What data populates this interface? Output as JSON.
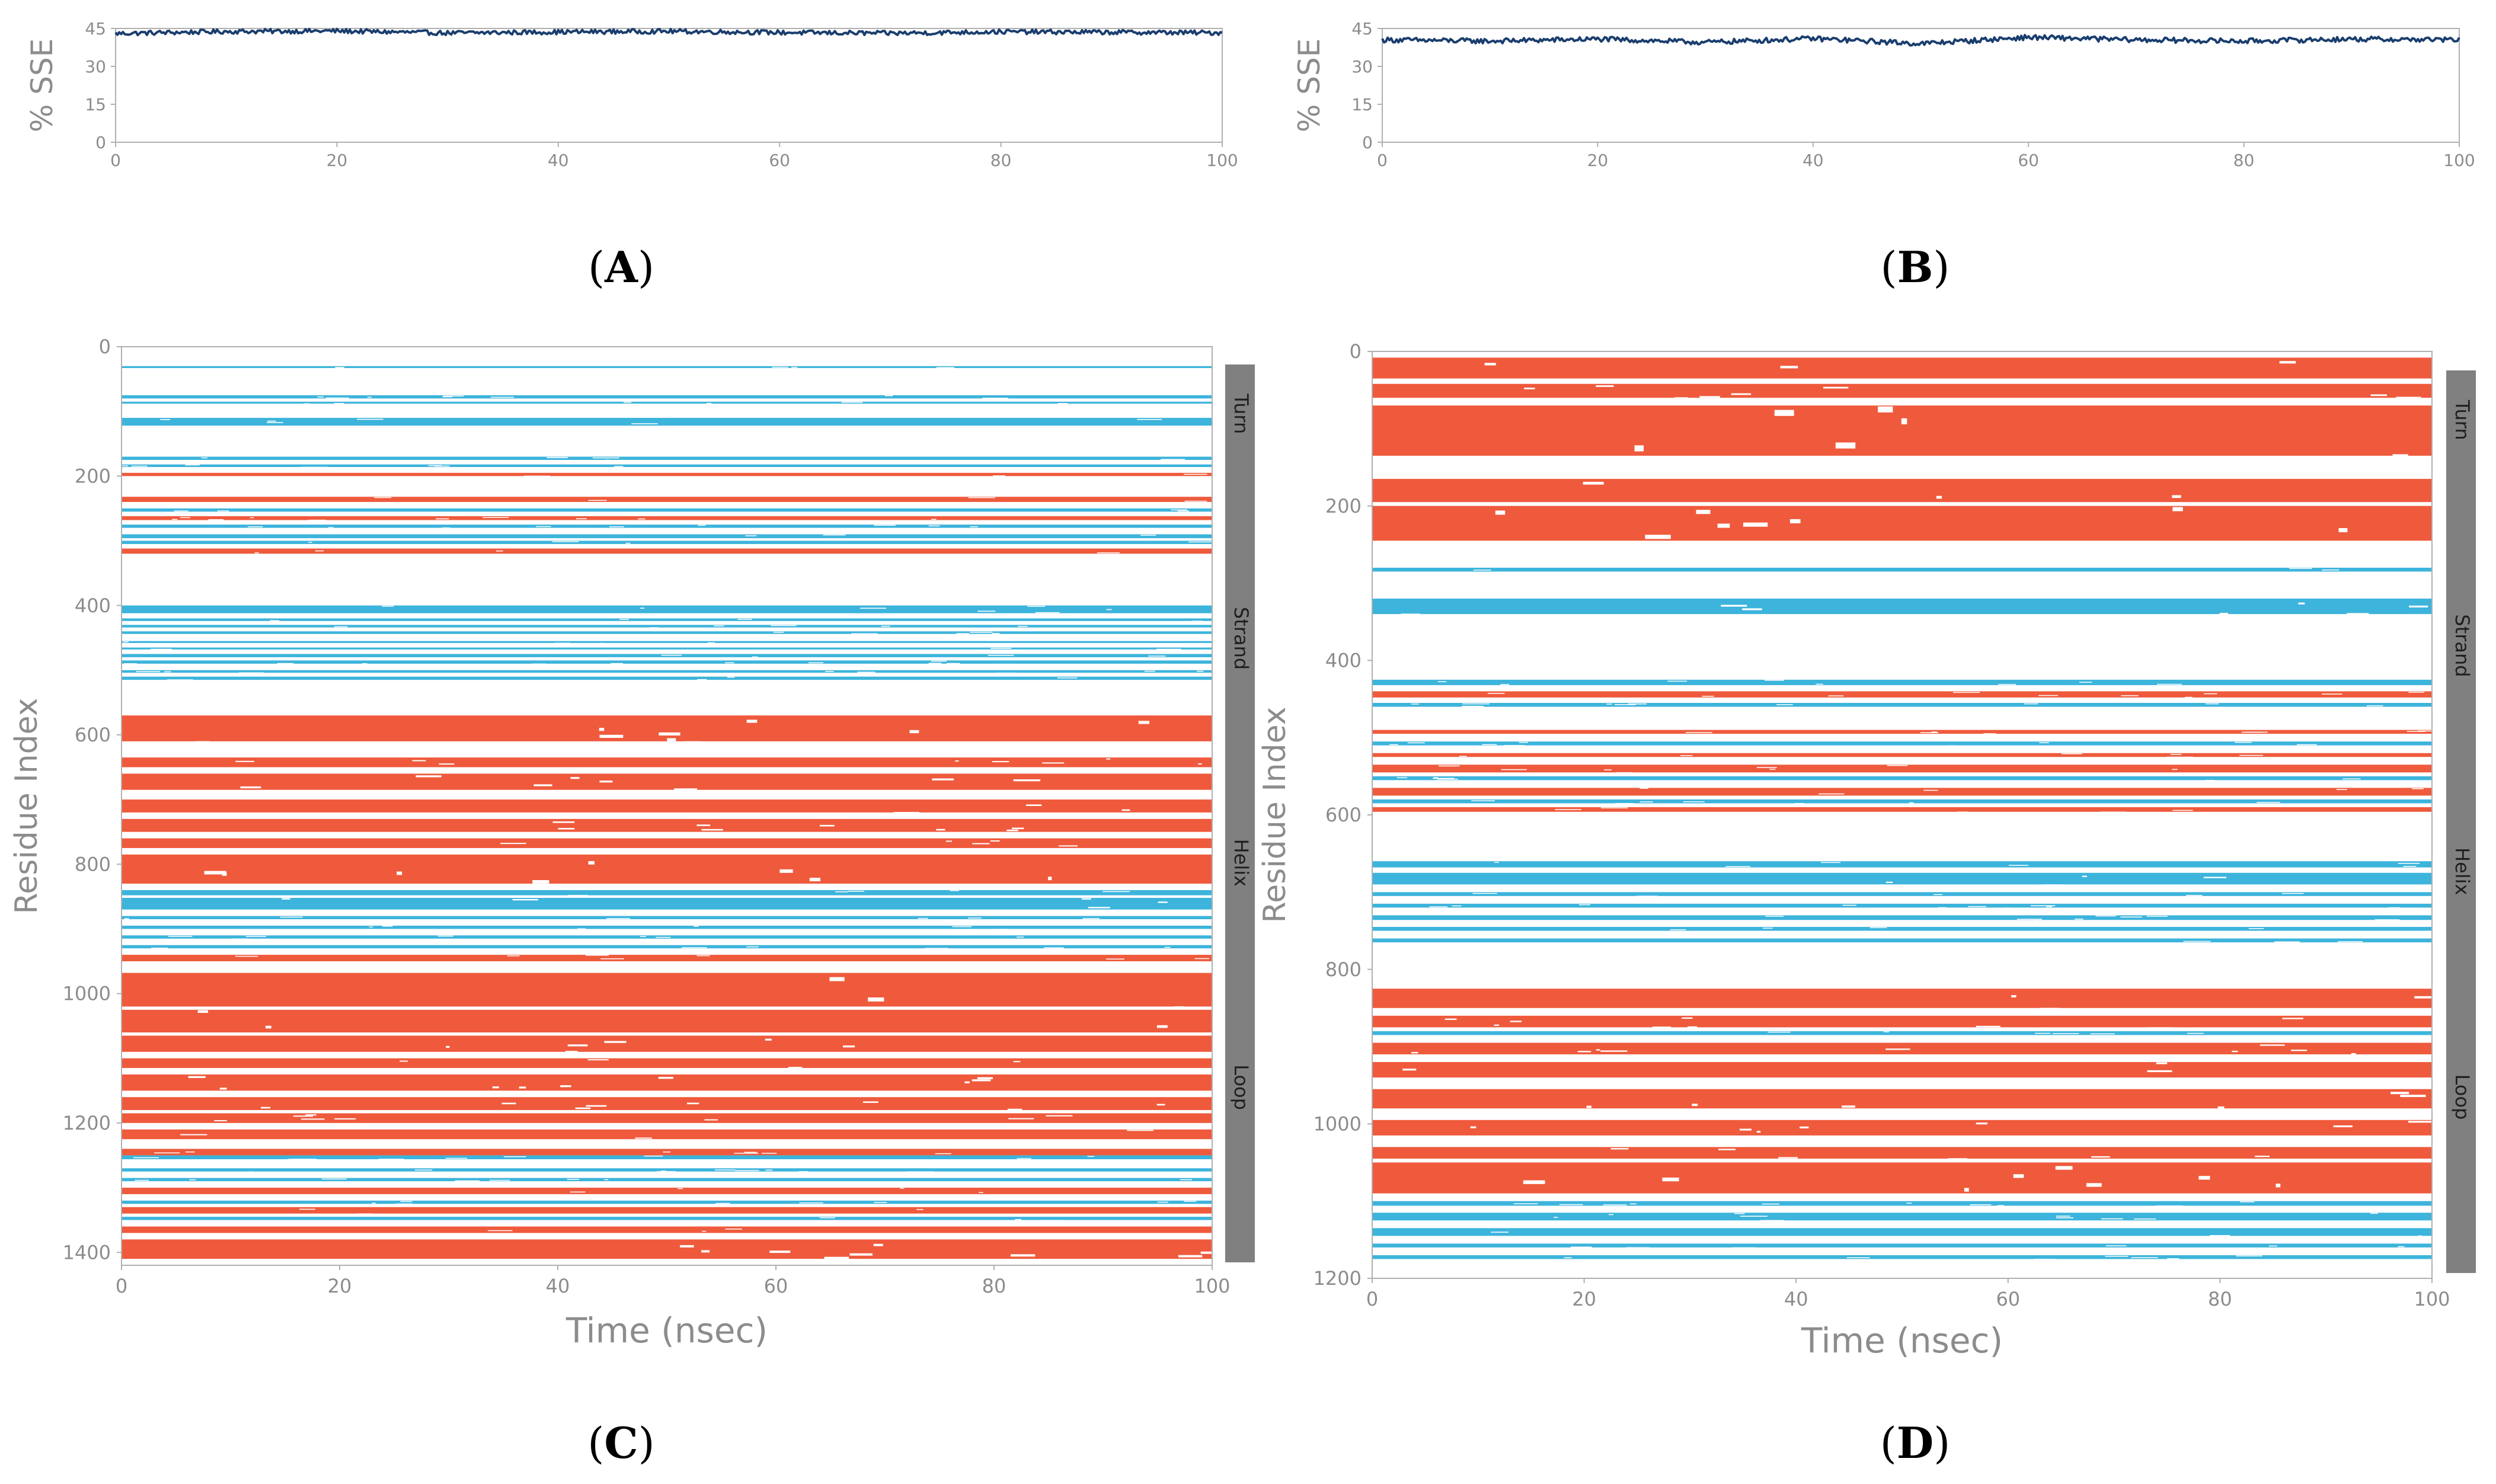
{
  "figure": {
    "panel_labels": [
      "A",
      "B",
      "C",
      "D"
    ]
  },
  "colors": {
    "sse_line": "#1a3e6e",
    "helix": "#ef5a3c",
    "strand": "#3cb4dc",
    "axis": "#b0b0b0",
    "tick_text": "#8c8c8c",
    "legend_bar": "#808080",
    "legend_text": "#1e1e1e"
  },
  "chart_data": [
    {
      "panel": "A",
      "type": "line",
      "title": "",
      "xlabel": "",
      "ylabel": "% SSE",
      "xlim": [
        0,
        100
      ],
      "ylim": [
        0,
        45
      ],
      "xticks": [
        "0",
        "20",
        "40",
        "60",
        "80",
        "100"
      ],
      "yticks": [
        "0",
        "15",
        "30",
        "45"
      ],
      "mean": 43.5,
      "jitter": 0.9,
      "series": [
        {
          "name": "% SSE",
          "values": [
            43.0,
            43.8,
            44.0,
            43.2,
            43.6,
            43.9,
            43.4,
            43.1,
            43.7,
            43.5,
            43.3
          ]
        }
      ]
    },
    {
      "panel": "B",
      "type": "line",
      "title": "",
      "xlabel": "",
      "ylabel": "% SSE",
      "xlim": [
        0,
        100
      ],
      "ylim": [
        0,
        45
      ],
      "xticks": [
        "0",
        "20",
        "40",
        "60",
        "80",
        "100"
      ],
      "yticks": [
        "0",
        "15",
        "30",
        "45"
      ],
      "mean": 40.5,
      "jitter": 1.0,
      "series": [
        {
          "name": "% SSE",
          "values": [
            40.5,
            40.0,
            40.8,
            39.5,
            41.0,
            39.0,
            41.5,
            40.5,
            40.0,
            40.8,
            40.5
          ]
        }
      ]
    },
    {
      "panel": "C",
      "type": "heatmap",
      "xlabel": "Time (nsec)",
      "ylabel": "Residue Index",
      "xlim": [
        0,
        100
      ],
      "ylim": [
        0,
        1420
      ],
      "xticks": [
        "0",
        "20",
        "40",
        "60",
        "80",
        "100"
      ],
      "yticks": [
        "0",
        "200",
        "400",
        "600",
        "800",
        "1000",
        "1200",
        "1400"
      ],
      "legend": [
        "Turn",
        "Strand",
        "Helix",
        "Loop"
      ],
      "helix_bands": [
        [
          195,
          200
        ],
        [
          232,
          240
        ],
        [
          262,
          268
        ],
        [
          312,
          320
        ],
        [
          570,
          610
        ],
        [
          635,
          650
        ],
        [
          660,
          685
        ],
        [
          700,
          720
        ],
        [
          730,
          750
        ],
        [
          760,
          775
        ],
        [
          785,
          830
        ],
        [
          940,
          950
        ],
        [
          968,
          1020
        ],
        [
          1025,
          1060
        ],
        [
          1065,
          1090
        ],
        [
          1100,
          1115
        ],
        [
          1125,
          1150
        ],
        [
          1160,
          1180
        ],
        [
          1185,
          1200
        ],
        [
          1210,
          1225
        ],
        [
          1240,
          1250
        ],
        [
          1300,
          1310
        ],
        [
          1330,
          1340
        ],
        [
          1360,
          1370
        ],
        [
          1380,
          1410
        ]
      ],
      "strand_bands": [
        [
          30,
          33
        ],
        [
          75,
          80
        ],
        [
          85,
          88
        ],
        [
          110,
          122
        ],
        [
          170,
          175
        ],
        [
          182,
          186
        ],
        [
          250,
          255
        ],
        [
          275,
          280
        ],
        [
          290,
          296
        ],
        [
          300,
          305
        ],
        [
          400,
          412
        ],
        [
          420,
          424
        ],
        [
          430,
          434
        ],
        [
          440,
          444
        ],
        [
          455,
          458
        ],
        [
          465,
          468
        ],
        [
          475,
          480
        ],
        [
          485,
          490
        ],
        [
          500,
          504
        ],
        [
          510,
          515
        ],
        [
          840,
          848
        ],
        [
          852,
          870
        ],
        [
          880,
          885
        ],
        [
          895,
          900
        ],
        [
          910,
          915
        ],
        [
          925,
          930
        ],
        [
          1250,
          1256
        ],
        [
          1270,
          1275
        ],
        [
          1285,
          1290
        ],
        [
          1320,
          1325
        ],
        [
          1345,
          1350
        ]
      ]
    },
    {
      "panel": "D",
      "type": "heatmap",
      "xlabel": "Time (nsec)",
      "ylabel": "Residue Index",
      "xlim": [
        0,
        100
      ],
      "ylim": [
        0,
        1200
      ],
      "xticks": [
        "0",
        "20",
        "40",
        "60",
        "80",
        "100"
      ],
      "yticks": [
        "0",
        "200",
        "400",
        "600",
        "800",
        "1000",
        "1200"
      ],
      "legend": [
        "Turn",
        "Strand",
        "Helix",
        "Loop"
      ],
      "helix_bands": [
        [
          8,
          35
        ],
        [
          42,
          60
        ],
        [
          70,
          135
        ],
        [
          165,
          195
        ],
        [
          200,
          245
        ],
        [
          440,
          448
        ],
        [
          490,
          495
        ],
        [
          520,
          525
        ],
        [
          535,
          545
        ],
        [
          565,
          575
        ],
        [
          590,
          596
        ],
        [
          825,
          850
        ],
        [
          860,
          875
        ],
        [
          895,
          910
        ],
        [
          920,
          940
        ],
        [
          955,
          980
        ],
        [
          995,
          1015
        ],
        [
          1030,
          1045
        ],
        [
          1050,
          1090
        ]
      ],
      "strand_bands": [
        [
          280,
          285
        ],
        [
          320,
          340
        ],
        [
          425,
          432
        ],
        [
          455,
          460
        ],
        [
          505,
          510
        ],
        [
          550,
          555
        ],
        [
          580,
          585
        ],
        [
          660,
          668
        ],
        [
          675,
          690
        ],
        [
          700,
          705
        ],
        [
          715,
          720
        ],
        [
          730,
          736
        ],
        [
          745,
          750
        ],
        [
          760,
          765
        ],
        [
          880,
          885
        ],
        [
          1100,
          1106
        ],
        [
          1115,
          1125
        ],
        [
          1135,
          1145
        ],
        [
          1155,
          1160
        ],
        [
          1170,
          1175
        ]
      ]
    }
  ]
}
